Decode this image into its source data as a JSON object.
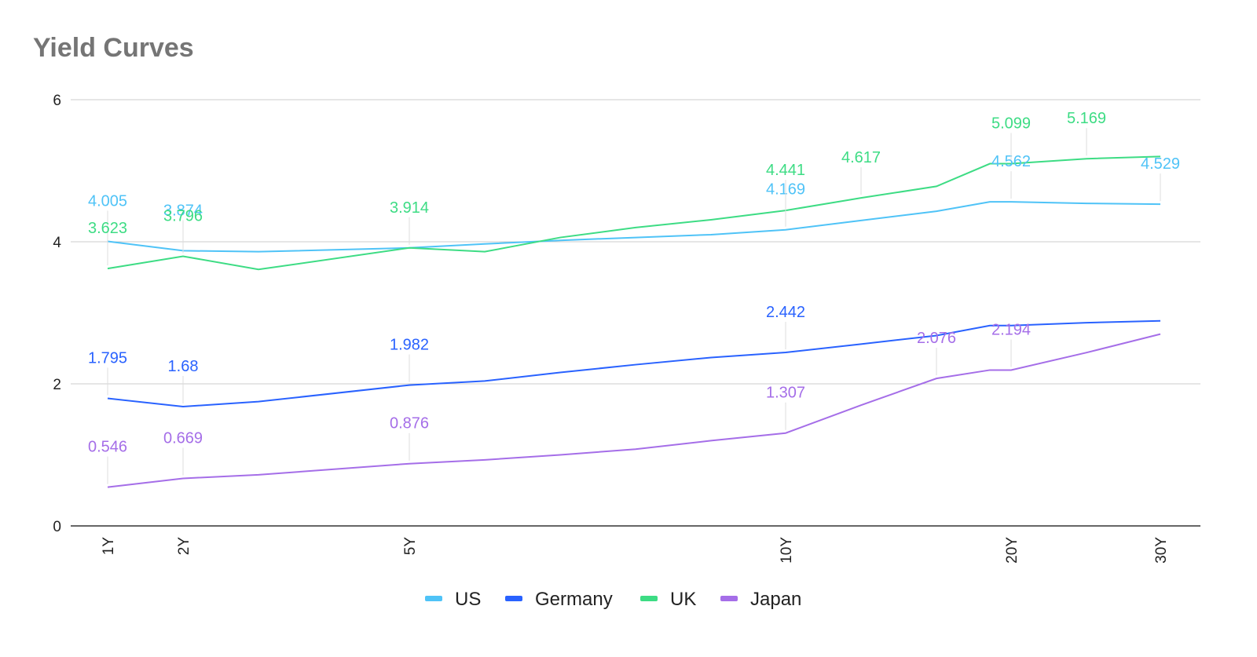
{
  "chart_data": {
    "type": "line",
    "title": "Yield Curves",
    "xlabel": "",
    "ylabel": "",
    "x": [
      1,
      2,
      3,
      5,
      6,
      7,
      8,
      9,
      10,
      11,
      12,
      13,
      20,
      25,
      30
    ],
    "x_tick_labels": {
      "1": "1Y",
      "2": "2Y",
      "5": "5Y",
      "10": "10Y",
      "20": "20Y",
      "30": "30Y"
    },
    "xlim": [
      1,
      30
    ],
    "ylim": [
      0,
      6
    ],
    "y_ticks": [
      0,
      2,
      4,
      6
    ],
    "grid": true,
    "legend_position": "bottom",
    "series": [
      {
        "name": "US",
        "color": "#4FC3F7",
        "values": [
          4.005,
          3.874,
          3.86,
          3.914,
          3.97,
          4.02,
          4.06,
          4.1,
          4.169,
          4.3,
          4.43,
          4.562,
          4.562,
          4.54,
          4.529
        ],
        "labels": {
          "1": "4.005",
          "2": "3.874",
          "10": "4.169",
          "20": "4.562",
          "30": "4.529"
        }
      },
      {
        "name": "Germany",
        "color": "#2962FF",
        "values": [
          1.795,
          1.68,
          1.75,
          1.982,
          2.04,
          2.16,
          2.27,
          2.37,
          2.442,
          2.56,
          2.68,
          2.82,
          2.82,
          2.86,
          2.887
        ],
        "labels": {
          "1": "1.795",
          "2": "1.68",
          "5": "1.982",
          "10": "2.442"
        }
      },
      {
        "name": "UK",
        "color": "#3DDC84",
        "values": [
          3.623,
          3.796,
          3.61,
          3.914,
          3.86,
          4.06,
          4.2,
          4.31,
          4.441,
          4.617,
          4.78,
          5.099,
          5.099,
          5.169,
          5.2
        ],
        "labels": {
          "1": "3.623",
          "2": "3.796",
          "5": "3.914",
          "10": "4.441",
          "11": "4.617",
          "20": "5.099",
          "25": "5.169"
        }
      },
      {
        "name": "Japan",
        "color": "#A56EE8",
        "values": [
          0.546,
          0.669,
          0.72,
          0.876,
          0.93,
          1.0,
          1.08,
          1.2,
          1.307,
          1.7,
          2.076,
          2.194,
          2.194,
          2.44,
          2.7
        ],
        "labels": {
          "1": "0.546",
          "2": "0.669",
          "5": "0.876",
          "10": "1.307",
          "12": "2.076",
          "13": "2.194"
        }
      }
    ]
  }
}
